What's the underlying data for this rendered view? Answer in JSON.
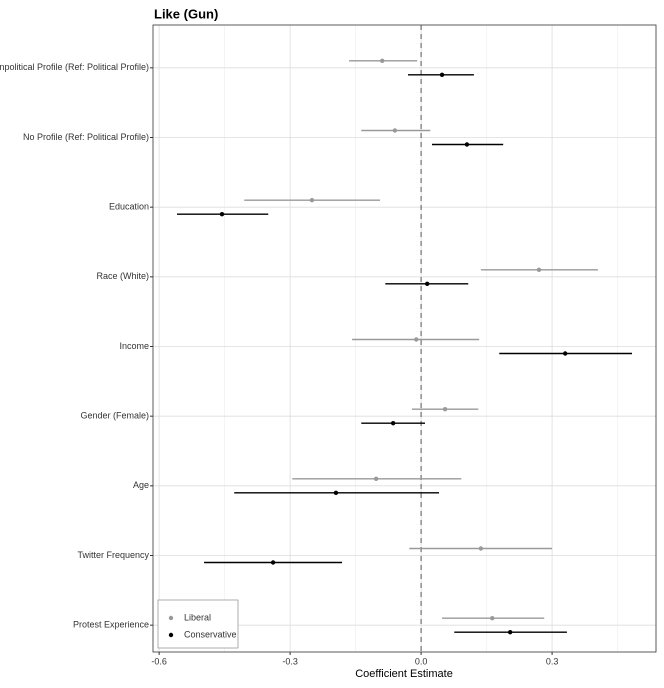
{
  "chart_data": {
    "type": "coefficient",
    "title": "Like (Gun)",
    "x_label": "Coefficient Estimate",
    "categories": [
      "Nonpolitical Profile (Ref: Political Profile)",
      "No Profile (Ref: Political Profile)",
      "Education",
      "Race (White)",
      "Income",
      "Gender (Female)",
      "Age",
      "Twitter Frequency",
      "Protest Experience"
    ],
    "series": [
      {
        "name": "Liberal",
        "color": "#999999",
        "values": [
          -0.089,
          -0.06,
          -0.25,
          0.27,
          -0.011,
          0.055,
          -0.103,
          0.137,
          0.163
        ],
        "lower": [
          -0.165,
          -0.137,
          -0.405,
          0.137,
          -0.158,
          -0.021,
          -0.295,
          -0.027,
          0.048
        ],
        "upper": [
          -0.009,
          0.021,
          -0.094,
          0.405,
          0.133,
          0.131,
          0.092,
          0.3,
          0.282
        ]
      },
      {
        "name": "Conservative",
        "color": "#000000",
        "values": [
          0.048,
          0.105,
          -0.456,
          0.014,
          0.33,
          -0.064,
          -0.195,
          -0.339,
          0.204
        ],
        "lower": [
          -0.03,
          0.025,
          -0.559,
          -0.082,
          0.179,
          -0.137,
          -0.428,
          -0.497,
          0.076
        ],
        "upper": [
          0.121,
          0.188,
          -0.35,
          0.108,
          0.483,
          0.009,
          0.041,
          -0.181,
          0.334
        ]
      }
    ],
    "xlim": [
      -0.614,
      0.538
    ],
    "xticks": [
      -0.6,
      -0.3,
      {
        "value": 0,
        "label": "0.0"
      },
      0.3
    ],
    "reference_line": 0,
    "grid": true,
    "legend": "bottom-left"
  }
}
